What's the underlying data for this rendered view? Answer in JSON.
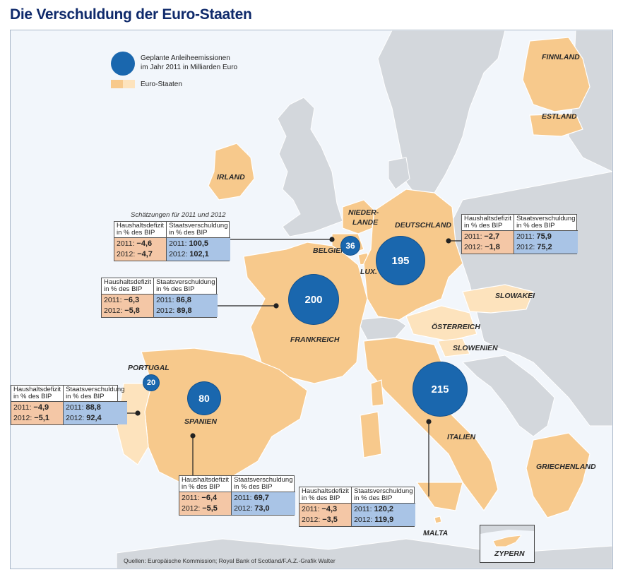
{
  "title": "Die Verschuldung der Euro-Staaten",
  "legend": {
    "circle_line1": "Geplante Anleiheemissionen",
    "circle_line2": "im Jahr 2011 in Milliarden Euro",
    "swatch_label": "Euro-Staaten"
  },
  "note": "Schätzungen für 2011 und 2012",
  "source": "Quellen: Europäische Kommission; Royal Bank of Scotland/F.A.Z.-Grafik Walter",
  "table_headers": {
    "deficit_line1": "Haushaltsdefizit",
    "deficit_line2": "in % des BIP",
    "debt_line1": "Staatsverschuldung",
    "debt_line2": "in % des BIP"
  },
  "countries": {
    "finnland": "FINNLAND",
    "estland": "ESTLAND",
    "irland": "IRLAND",
    "niederlande_1": "NIEDER-",
    "niederlande_2": "LANDE",
    "deutschland": "DEUTSCHLAND",
    "belgien": "BELGIEN",
    "lux": "LUX.",
    "frankreich": "FRANKREICH",
    "slowakei": "SLOWAKEI",
    "oesterreich": "ÖSTERREICH",
    "slowenien": "SLOWENIEN",
    "portugal": "PORTUGAL",
    "spanien": "SPANIEN",
    "italien": "ITALIEN",
    "griechenland": "GRIECHENLAND",
    "malta": "MALTA",
    "zypern": "ZYPERN"
  },
  "bubbles": {
    "belgien": "36",
    "deutschland": "195",
    "frankreich": "200",
    "italien": "215",
    "portugal": "20",
    "spanien": "80"
  },
  "tables": {
    "belgien": {
      "d2011_label": "2011:",
      "d2011": "−4,6",
      "d2012_label": "2012:",
      "d2012": "−4,7",
      "s2011_label": "2011:",
      "s2011": "100,5",
      "s2012_label": "2012:",
      "s2012": "102,1"
    },
    "deutschland": {
      "d2011_label": "2011:",
      "d2011": "−2,7",
      "d2012_label": "2012:",
      "d2012": "−1,8",
      "s2011_label": "2011:",
      "s2011": "75,9",
      "s2012_label": "2012:",
      "s2012": "75,2"
    },
    "frankreich": {
      "d2011_label": "2011:",
      "d2011": "−6,3",
      "d2012_label": "2012:",
      "d2012": "−5,8",
      "s2011_label": "2011:",
      "s2011": "86,8",
      "s2012_label": "2012:",
      "s2012": "89,8"
    },
    "portugal": {
      "d2011_label": "2011:",
      "d2011": "−4,9",
      "d2012_label": "2012:",
      "d2012": "−5,1",
      "s2011_label": "2011:",
      "s2011": "88,8",
      "s2012_label": "2012:",
      "s2012": "92,4"
    },
    "spanien": {
      "d2011_label": "2011:",
      "d2011": "−6,4",
      "d2012_label": "2012:",
      "d2012": "−5,5",
      "s2011_label": "2011:",
      "s2011": "69,7",
      "s2012_label": "2012:",
      "s2012": "73,0"
    },
    "italien": {
      "d2011_label": "2011:",
      "d2011": "−4,3",
      "d2012_label": "2012:",
      "d2012": "−3,5",
      "s2011_label": "2011:",
      "s2011": "120,2",
      "s2012_label": "2012:",
      "s2012": "119,9"
    }
  },
  "colors": {
    "euro_state": "#f7c98c",
    "euro_state_light": "#fde3bd",
    "non_euro": "#d3d7dc",
    "sea": "#f2f6fb",
    "bubble": "#1a67ae",
    "deficit_cell": "#f4c7a6",
    "debt_cell": "#a9c4e6"
  }
}
